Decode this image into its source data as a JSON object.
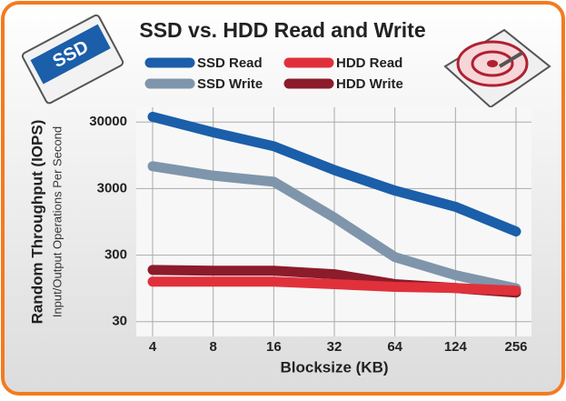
{
  "icons": {
    "ssd_label": "SSD"
  },
  "chart_data": {
    "type": "line",
    "title": "SSD vs. HDD Read and Write",
    "y_label": "Random Throughput (IOPS)",
    "y_sublabel": "Input/Output Operations Per Second",
    "x_label": "Blocksize (KB)",
    "categories": [
      "4",
      "8",
      "16",
      "32",
      "64",
      "124",
      "256"
    ],
    "series": [
      {
        "name": "SSD Read",
        "color": "#1b5ea9",
        "values": [
          36000,
          21000,
          13000,
          5700,
          2800,
          1600,
          680
        ]
      },
      {
        "name": "SSD Write",
        "color": "#7f95ab",
        "values": [
          6500,
          4700,
          3800,
          1100,
          280,
          150,
          95
        ]
      },
      {
        "name": "HDD Read",
        "color": "#e0313b",
        "values": [
          120,
          120,
          120,
          110,
          100,
          96,
          88
        ]
      },
      {
        "name": "HDD Write",
        "color": "#8c1b2b",
        "values": [
          180,
          175,
          175,
          155,
          110,
          96,
          82
        ]
      }
    ],
    "ylim": [
      18,
      50000
    ],
    "yticks": [
      30,
      300,
      3000,
      30000
    ],
    "log_y": true,
    "grid": true,
    "legend": "top"
  }
}
